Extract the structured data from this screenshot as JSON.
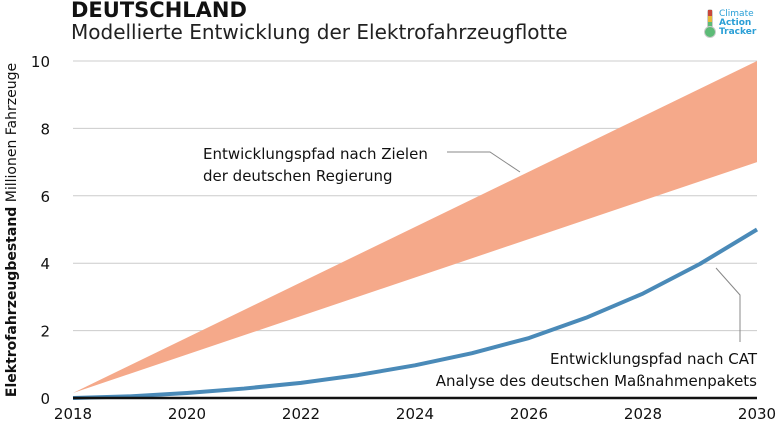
{
  "title": "DEUTSCHLAND",
  "subtitle": "Modellierte Entwicklung der Elektrofahrzeugflotte",
  "logo": {
    "line1": "Climate",
    "line2": "Action",
    "line3": "Tracker"
  },
  "chart_data": {
    "type": "area",
    "xlabel": "",
    "ylabel_bold": "Elektrofahrzeugbestand",
    "ylabel_rest": " Millionen Fahrzeuge",
    "xlim": [
      2018,
      2030
    ],
    "ylim": [
      0,
      10
    ],
    "xticks": [
      2018,
      2020,
      2022,
      2024,
      2026,
      2028,
      2030
    ],
    "yticks": [
      0,
      2,
      4,
      6,
      8,
      10
    ],
    "grid": true,
    "series": [
      {
        "name": "Entwicklungspfad nach Zielen der deutschen Regierung",
        "type": "band",
        "color": "#f5a98a",
        "x": [
          2018,
          2030
        ],
        "lower": [
          0.15,
          7.0
        ],
        "upper": [
          0.15,
          10.0
        ],
        "label_lines": [
          "Entwicklungspfad nach Zielen",
          "der deutschen Regierung"
        ]
      },
      {
        "name": "Entwicklungspfad nach CAT Analyse des deutschen Maßnahmenpakets",
        "type": "line",
        "color": "#4a8ab8",
        "x": [
          2018,
          2019,
          2020,
          2021,
          2022,
          2023,
          2024,
          2025,
          2026,
          2027,
          2028,
          2029,
          2030
        ],
        "y": [
          0,
          0.05,
          0.15,
          0.28,
          0.45,
          0.68,
          0.97,
          1.33,
          1.78,
          2.38,
          3.1,
          3.98,
          5.0
        ],
        "label_lines": [
          "Entwicklungspfad nach CAT",
          "Analyse des deutschen Maßnahmenpakets"
        ]
      }
    ]
  }
}
